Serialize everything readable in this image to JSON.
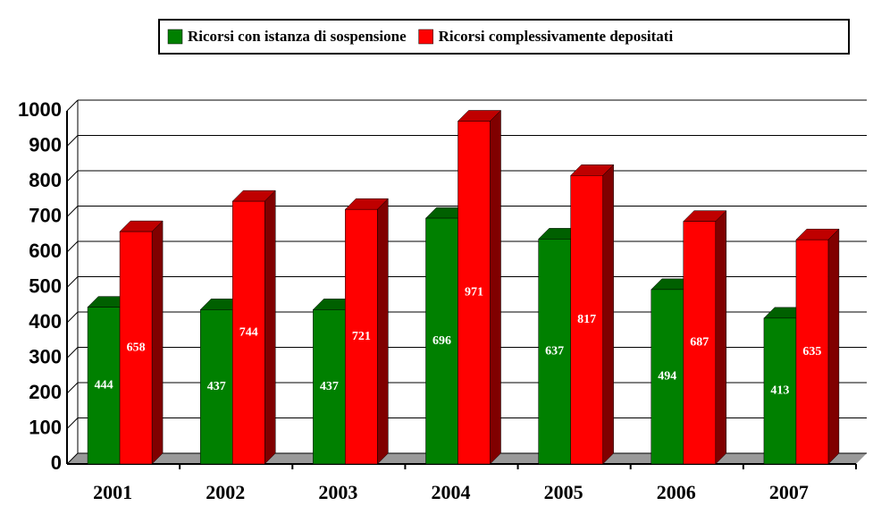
{
  "chart_data": {
    "type": "bar3d",
    "categories": [
      "2001",
      "2002",
      "2003",
      "2004",
      "2005",
      "2006",
      "2007"
    ],
    "series": [
      {
        "name": "Ricorsi con istanza di sospensione",
        "color": "#008000",
        "values": [
          444,
          437,
          437,
          696,
          637,
          494,
          413
        ]
      },
      {
        "name": "Ricorsi complessivamente depositati",
        "color": "#ff0000",
        "values": [
          658,
          744,
          721,
          971,
          817,
          687,
          635
        ]
      }
    ],
    "ylim": [
      0,
      1000
    ],
    "yticks": [
      0,
      100,
      200,
      300,
      400,
      500,
      600,
      700,
      800,
      900,
      1000
    ],
    "grid": true,
    "legend": "top"
  }
}
